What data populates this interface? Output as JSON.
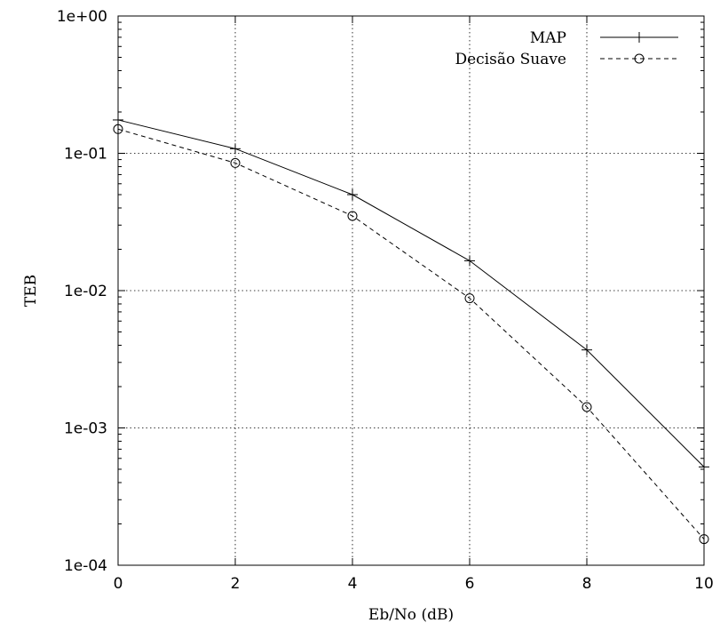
{
  "chart_data": {
    "type": "line",
    "title": "",
    "xlabel": "Eb/No (dB)",
    "ylabel": "TEB",
    "xlim": [
      0,
      10
    ],
    "ylim": [
      0.0001,
      1
    ],
    "yscale": "log",
    "grid": true,
    "legend_position": "top-right",
    "x_ticks": [
      0,
      2,
      4,
      6,
      8,
      10
    ],
    "x_tick_labels": [
      "0",
      "2",
      "4",
      "6",
      "8",
      "10"
    ],
    "y_ticks": [
      1,
      0.1,
      0.01,
      0.001,
      0.0001
    ],
    "y_tick_labels": [
      "1e+00",
      "1e-01",
      "1e-02",
      "1e-03",
      "1e-04"
    ],
    "series": [
      {
        "name": "MAP",
        "marker": "plus",
        "line_style": "solid",
        "color": "#000000",
        "x": [
          0,
          2,
          4,
          6,
          8,
          10
        ],
        "y": [
          0.175,
          0.108,
          0.05,
          0.0165,
          0.0037,
          0.00052
        ]
      },
      {
        "name": "Decisão Suave",
        "marker": "circle",
        "line_style": "dashed",
        "color": "#000000",
        "x": [
          0,
          2,
          4,
          6,
          8,
          10
        ],
        "y": [
          0.15,
          0.085,
          0.035,
          0.0088,
          0.00142,
          0.000155
        ]
      }
    ]
  }
}
